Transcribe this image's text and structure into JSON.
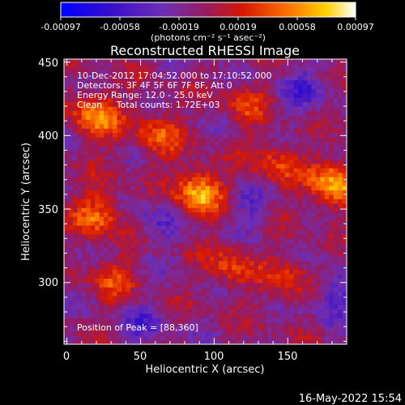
{
  "colorbar": {
    "ticks": [
      "-0.00097",
      "-0.00058",
      "-0.00019",
      "0.00019",
      "0.00058",
      "0.00097"
    ],
    "unit_label": "(photons cm⁻² s⁻¹ asec⁻²)"
  },
  "annotations": [
    "10-Dec-2012 17:04:52.000 to 17:10:52.000",
    "Detectors: 3F 4F 5F 6F 7F 8F, Att 0",
    "Energy Range: 12.0 - 25.0 keV",
    "Clean     Total counts: 1.72E+03"
  ],
  "peak_label": "Position of Peak = [88,360]",
  "footer_date": "16-May-2022 15:54",
  "chart_data": {
    "type": "heatmap",
    "title": "Reconstructed RHESSI Image",
    "xlabel": "Heliocentric X (arcsec)",
    "ylabel": "Heliocentric Y (arcsec)",
    "xlim": [
      -2,
      190
    ],
    "ylim": [
      258,
      452
    ],
    "xticks": [
      0,
      50,
      100,
      150
    ],
    "yticks": [
      300,
      350,
      400,
      450
    ],
    "zlim": [
      -0.00097,
      0.00097
    ],
    "colormap": "rhessi (blue-purple-red-orange-yellow-white)",
    "peak": [
      88,
      360
    ],
    "bright_regions": [
      {
        "x": 88,
        "y": 360,
        "relative_intensity": 1.0
      },
      {
        "x": 180,
        "y": 366,
        "relative_intensity": 0.95
      },
      {
        "x": 18,
        "y": 412,
        "relative_intensity": 0.8
      },
      {
        "x": 20,
        "y": 345,
        "relative_intensity": 0.7
      },
      {
        "x": 60,
        "y": 400,
        "relative_intensity": 0.55
      },
      {
        "x": 140,
        "y": 380,
        "relative_intensity": 0.5
      },
      {
        "x": 110,
        "y": 310,
        "relative_intensity": 0.5
      },
      {
        "x": 150,
        "y": 300,
        "relative_intensity": 0.45
      },
      {
        "x": 30,
        "y": 300,
        "relative_intensity": 0.45
      },
      {
        "x": 120,
        "y": 420,
        "relative_intensity": 0.4
      }
    ],
    "dark_regions": [
      {
        "x": 180,
        "y": 290,
        "relative_intensity": -0.5
      },
      {
        "x": 160,
        "y": 430,
        "relative_intensity": -0.4
      },
      {
        "x": 50,
        "y": 270,
        "relative_intensity": -0.35
      },
      {
        "x": 60,
        "y": 340,
        "relative_intensity": -0.3
      },
      {
        "x": 120,
        "y": 350,
        "relative_intensity": -0.3
      }
    ]
  }
}
